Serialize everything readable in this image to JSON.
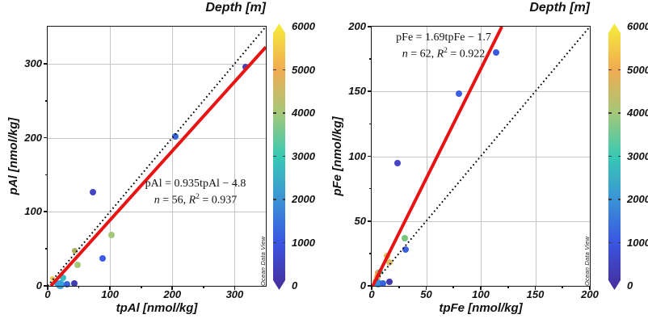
{
  "figure": {
    "credit": "Ocean Data View",
    "colorbar": {
      "title": "Depth [m]",
      "min": 0,
      "max": 6000,
      "ticks": [
        0,
        1000,
        2000,
        3000,
        4000,
        5000,
        6000
      ],
      "gradient_stops": [
        {
          "value": 0,
          "color": "#46309f"
        },
        {
          "value": 1000,
          "color": "#3a55e2"
        },
        {
          "value": 2000,
          "color": "#3b93d6"
        },
        {
          "value": 3000,
          "color": "#38c9b2"
        },
        {
          "value": 4000,
          "color": "#a4c878"
        },
        {
          "value": 5000,
          "color": "#f0ab52"
        },
        {
          "value": 6000,
          "color": "#f6e93b"
        }
      ]
    }
  },
  "chart_data": [
    {
      "type": "scatter",
      "title": "Depth [m]",
      "xlabel": "tpAl [nmol/kg]",
      "ylabel": "pAl [nmol/kg]",
      "xlim": [
        0,
        350
      ],
      "ylim": [
        0,
        350
      ],
      "xticks": [
        0,
        100,
        200,
        300
      ],
      "yticks": [
        0,
        100,
        200,
        300
      ],
      "minor_xticks": [
        50,
        150,
        250
      ],
      "minor_yticks": [
        50,
        150,
        250
      ],
      "grid": true,
      "identity_line": {
        "style": "dotted",
        "color": "#000000"
      },
      "regression": {
        "slope": 0.935,
        "intercept": -4.8,
        "n": 56,
        "r2": 0.937,
        "color": "#e81414"
      },
      "equation": "pAl = 0.935tpAl − 4.8",
      "stats": {
        "n_var": "n",
        "n_eq": " = 56, ",
        "r_var": "R",
        "r_sup": "2",
        "r_eq": " = 0.937"
      },
      "color_encodes": "Depth [m]",
      "points": [
        {
          "x": 318,
          "y": 296,
          "depth": 200,
          "color": "#4a41b6"
        },
        {
          "x": 205,
          "y": 202,
          "depth": 1200,
          "color": "#3565d8"
        },
        {
          "x": 73,
          "y": 126,
          "depth": 600,
          "color": "#4146c4"
        },
        {
          "x": 102,
          "y": 69,
          "depth": 4200,
          "color": "#a2c879"
        },
        {
          "x": 88,
          "y": 37,
          "depth": 1000,
          "color": "#3b5ce0"
        },
        {
          "x": 43,
          "y": 47,
          "depth": 4600,
          "color": "#a9ab5e",
          "size": 7
        },
        {
          "x": 48,
          "y": 28,
          "depth": 4200,
          "color": "#a2c879"
        },
        {
          "x": 24,
          "y": 11,
          "depth": 2400,
          "color": "#3bbdc4"
        },
        {
          "x": 8,
          "y": 10,
          "depth": 5600,
          "color": "#e7cb4c",
          "size": 6
        },
        {
          "x": 20,
          "y": 2,
          "depth": 2000,
          "color": "#34a0dc",
          "size": 11
        },
        {
          "x": 15,
          "y": 3,
          "depth": 2000,
          "color": "#34a0dc"
        },
        {
          "x": 31,
          "y": 2,
          "depth": 1200,
          "color": "#3565d8"
        },
        {
          "x": 43,
          "y": 3,
          "depth": 300,
          "color": "#3f3db0"
        }
      ]
    },
    {
      "type": "scatter",
      "title": "Depth [m]",
      "xlabel": "tpFe [nmol/kg]",
      "ylabel": "pFe [nmol/kg]",
      "xlim": [
        0,
        200
      ],
      "ylim": [
        0,
        200
      ],
      "xticks": [
        0,
        50,
        100,
        150,
        200
      ],
      "yticks": [
        0,
        50,
        100,
        150,
        200
      ],
      "minor_xticks": [
        25,
        75,
        125,
        175
      ],
      "minor_yticks": [
        25,
        75,
        125,
        175
      ],
      "grid": true,
      "identity_line": {
        "style": "dotted",
        "color": "#000000"
      },
      "regression": {
        "slope": 1.69,
        "intercept": -1.7,
        "n": 62,
        "r2": 0.922,
        "color": "#e81414"
      },
      "equation": "pFe = 1.69tpFe − 1.7",
      "stats": {
        "n_var": "n",
        "n_eq": " = 62, ",
        "r_var": "R",
        "r_sup": "2",
        "r_eq": " = 0.922"
      },
      "color_encodes": "Depth [m]",
      "points": [
        {
          "x": 114,
          "y": 180,
          "depth": 900,
          "color": "#3a5ae2"
        },
        {
          "x": 80,
          "y": 148,
          "depth": 1100,
          "color": "#3c5fe2"
        },
        {
          "x": 24,
          "y": 95,
          "depth": 400,
          "color": "#4742c6"
        },
        {
          "x": 30,
          "y": 37,
          "depth": 3800,
          "color": "#74c47a"
        },
        {
          "x": 31,
          "y": 28,
          "depth": 1000,
          "color": "#3a62de"
        },
        {
          "x": 14,
          "y": 23,
          "depth": 4900,
          "color": "#e3c067"
        },
        {
          "x": 16,
          "y": 18,
          "depth": 4900,
          "color": "#e0bd6b"
        },
        {
          "x": 3,
          "y": 4,
          "depth": 5400,
          "color": "#f2b44e",
          "size": 6
        },
        {
          "x": 5,
          "y": 7,
          "depth": 5100,
          "color": "#f0a54e"
        },
        {
          "x": 6,
          "y": 10,
          "depth": 5100,
          "color": "#eda14f"
        },
        {
          "x": 8,
          "y": 11,
          "depth": 2800,
          "color": "#3fc2b2",
          "size": 7
        },
        {
          "x": 6,
          "y": 2,
          "depth": 1800,
          "color": "#3a8fdc",
          "size": 10
        },
        {
          "x": 10,
          "y": 2,
          "depth": 1000,
          "color": "#3a62de"
        },
        {
          "x": 16,
          "y": 3,
          "depth": 200,
          "color": "#423bb0"
        }
      ]
    }
  ]
}
